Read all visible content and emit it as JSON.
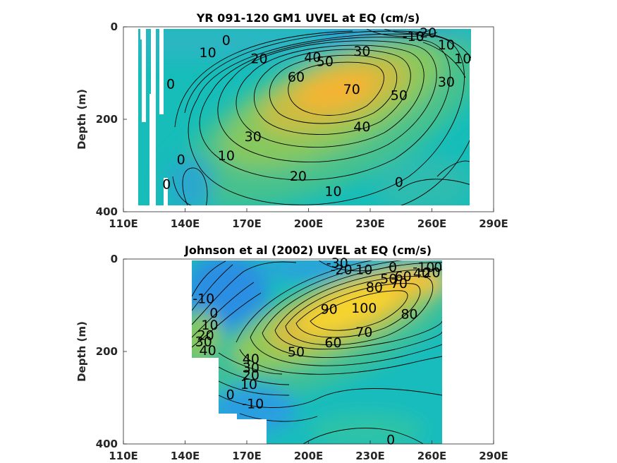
{
  "chart_data": [
    {
      "type": "contour",
      "title": "YR 091-120 GM1 UVEL at EQ (cm/s)",
      "xlabel": "",
      "ylabel": "Depth (m)",
      "xlim": [
        110,
        290
      ],
      "ylim": [
        0,
        400
      ],
      "y_reversed": true,
      "x_ticks": [
        110,
        140,
        170,
        200,
        230,
        260,
        290
      ],
      "x_tick_labels": [
        "110E",
        "140E",
        "170E",
        "200E",
        "230E",
        "260E",
        "290E"
      ],
      "y_ticks": [
        0,
        200,
        400
      ],
      "y_tick_labels": [
        "0",
        "200",
        "400"
      ],
      "core": {
        "longitude": 218,
        "depth": 120,
        "max_speed": 70
      },
      "contour_labels": [
        {
          "text": "-20",
          "lon": 257,
          "depth": 12
        },
        {
          "text": "-10",
          "lon": 251,
          "depth": 20
        },
        {
          "text": "10",
          "lon": 267,
          "depth": 38
        },
        {
          "text": "10",
          "lon": 275,
          "depth": 68
        },
        {
          "text": "0",
          "lon": 160,
          "depth": 28
        },
        {
          "text": "10",
          "lon": 151,
          "depth": 55
        },
        {
          "text": "20",
          "lon": 176,
          "depth": 68
        },
        {
          "text": "30",
          "lon": 226,
          "depth": 52
        },
        {
          "text": "40",
          "lon": 202,
          "depth": 65
        },
        {
          "text": "50",
          "lon": 208,
          "depth": 74
        },
        {
          "text": "60",
          "lon": 194,
          "depth": 108
        },
        {
          "text": "70",
          "lon": 221,
          "depth": 134
        },
        {
          "text": "50",
          "lon": 244,
          "depth": 147
        },
        {
          "text": "30",
          "lon": 267,
          "depth": 118
        },
        {
          "text": "0",
          "lon": 133,
          "depth": 123
        },
        {
          "text": "40",
          "lon": 226,
          "depth": 215
        },
        {
          "text": "30",
          "lon": 173,
          "depth": 237
        },
        {
          "text": "10",
          "lon": 160,
          "depth": 278
        },
        {
          "text": "0",
          "lon": 138,
          "depth": 286
        },
        {
          "text": "20",
          "lon": 195,
          "depth": 322
        },
        {
          "text": "10",
          "lon": 212,
          "depth": 355
        },
        {
          "text": "0",
          "lon": 244,
          "depth": 335
        },
        {
          "text": "0",
          "lon": 131,
          "depth": 340
        }
      ]
    },
    {
      "type": "contour",
      "title": "Johnson et al (2002) UVEL at EQ (cm/s)",
      "xlabel": "",
      "ylabel": "Depth (m)",
      "xlim": [
        110,
        290
      ],
      "ylim": [
        0,
        400
      ],
      "y_reversed": true,
      "x_ticks": [
        110,
        140,
        170,
        200,
        230,
        260,
        290
      ],
      "x_tick_labels": [
        "110E",
        "140E",
        "170E",
        "200E",
        "230E",
        "260E",
        "290E"
      ],
      "y_ticks": [
        0,
        200,
        400
      ],
      "y_tick_labels": [
        "0",
        "200",
        "400"
      ],
      "core": {
        "longitude": 225,
        "depth": 140,
        "max_speed": 100
      },
      "contour_labels": [
        {
          "text": "-30",
          "lon": 214,
          "depth": 8
        },
        {
          "text": "-20",
          "lon": 216,
          "depth": 22
        },
        {
          "text": "10",
          "lon": 227,
          "depth": 22
        },
        {
          "text": "0",
          "lon": 241,
          "depth": 17
        },
        {
          "text": "-10",
          "lon": 256,
          "depth": 17
        },
        {
          "text": "0",
          "lon": 263,
          "depth": 17
        },
        {
          "text": "50",
          "lon": 239,
          "depth": 42
        },
        {
          "text": "60",
          "lon": 246,
          "depth": 37
        },
        {
          "text": "40",
          "lon": 255,
          "depth": 30
        },
        {
          "text": "20",
          "lon": 260,
          "depth": 28
        },
        {
          "text": "80",
          "lon": 232,
          "depth": 60
        },
        {
          "text": "70",
          "lon": 244,
          "depth": 52
        },
        {
          "text": "-10",
          "lon": 149,
          "depth": 85
        },
        {
          "text": "0",
          "lon": 154,
          "depth": 116
        },
        {
          "text": "10",
          "lon": 152,
          "depth": 142
        },
        {
          "text": "20",
          "lon": 150,
          "depth": 164
        },
        {
          "text": "30",
          "lon": 149,
          "depth": 178
        },
        {
          "text": "40",
          "lon": 151,
          "depth": 197
        },
        {
          "text": "90",
          "lon": 210,
          "depth": 108
        },
        {
          "text": "100",
          "lon": 227,
          "depth": 105
        },
        {
          "text": "80",
          "lon": 249,
          "depth": 118
        },
        {
          "text": "70",
          "lon": 227,
          "depth": 157
        },
        {
          "text": "60",
          "lon": 212,
          "depth": 180
        },
        {
          "text": "50",
          "lon": 194,
          "depth": 200
        },
        {
          "text": "40",
          "lon": 172,
          "depth": 215
        },
        {
          "text": "30",
          "lon": 172,
          "depth": 234
        },
        {
          "text": "20",
          "lon": 172,
          "depth": 250
        },
        {
          "text": "10",
          "lon": 171,
          "depth": 270
        },
        {
          "text": "0",
          "lon": 162,
          "depth": 292
        },
        {
          "text": "-10",
          "lon": 173,
          "depth": 312
        },
        {
          "text": "0",
          "lon": 240,
          "depth": 390
        }
      ]
    }
  ]
}
